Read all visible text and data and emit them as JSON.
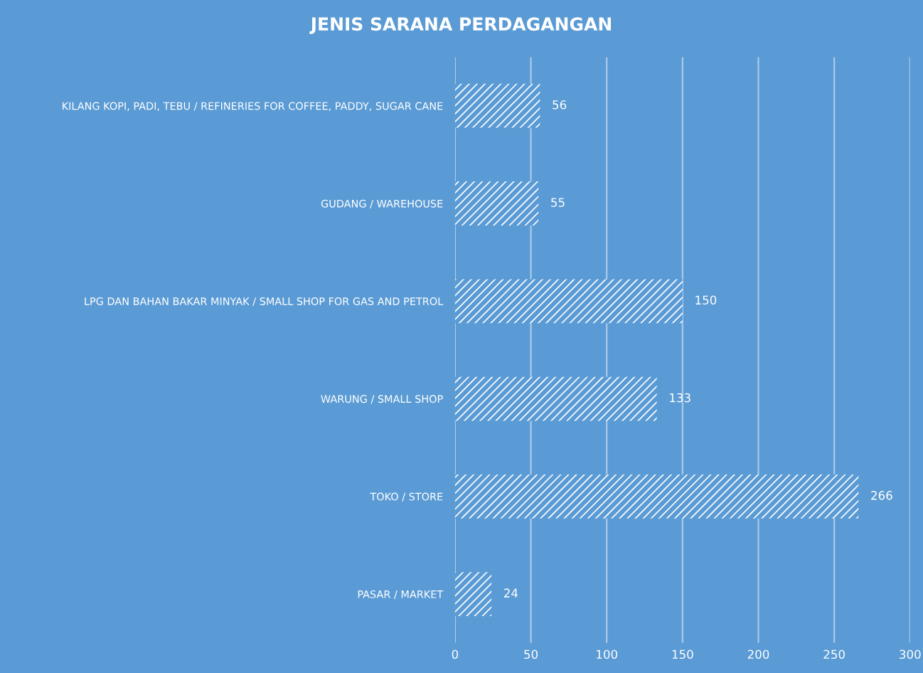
{
  "chart_data": {
    "type": "bar",
    "orientation": "horizontal",
    "title": "JENIS SARANA PERDAGANGAN",
    "categories": [
      "KILANG KOPI, PADI, TEBU / REFINERIES FOR COFFEE, PADDY, SUGAR CANE",
      "GUDANG / WAREHOUSE",
      "LPG DAN BAHAN BAKAR MINYAK / SMALL SHOP FOR GAS AND PETROL",
      "WARUNG / SMALL SHOP",
      "TOKO / STORE",
      "PASAR / MARKET"
    ],
    "values": [
      56,
      55,
      150,
      133,
      266,
      24
    ],
    "color": "#ffffff",
    "xlim": [
      0,
      300
    ],
    "xticks": [
      0,
      50,
      100,
      150,
      200,
      250,
      300
    ],
    "grid": "x",
    "data_labels": true,
    "legend": false
  }
}
